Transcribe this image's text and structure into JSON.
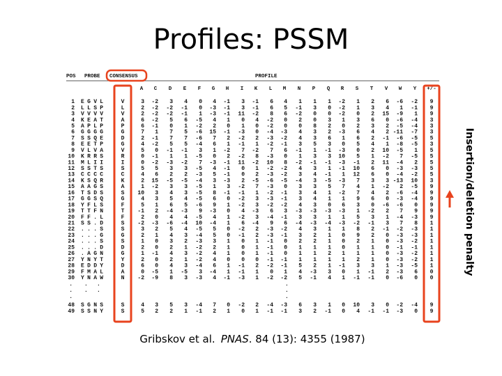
{
  "title": "Profiles: PSSM",
  "side_label": "Insertion/deletion penalty",
  "citation": {
    "authors": "Gribskov et al.",
    "journal": "PNAS",
    "rest": ". 84 (13): 4355 (1987)"
  },
  "table": {
    "pos_header": "POS",
    "probe_header": "PROBE",
    "consensus_header": "CONSENSUS",
    "profile_header": "PROFILE",
    "gap_header": "+/-",
    "columns": [
      "A",
      "C",
      "D",
      "E",
      "F",
      "G",
      "H",
      "I",
      "K",
      "L",
      "M",
      "N",
      "P",
      "Q",
      "R",
      "S",
      "T",
      "V",
      "W",
      "Y"
    ],
    "rows": [
      {
        "pos": "1",
        "probe": "EGVL",
        "consensus": "V",
        "values": [
          3,
          -2,
          3,
          4,
          0,
          4,
          -1,
          3,
          -1,
          6,
          4,
          1,
          1,
          1,
          -2,
          1,
          2,
          6,
          -6,
          -2
        ],
        "gap": 9
      },
      {
        "pos": "2",
        "probe": "LLSP",
        "consensus": "L",
        "values": [
          2,
          -2,
          -2,
          -1,
          0,
          -3,
          -1,
          3,
          -1,
          6,
          5,
          -1,
          3,
          0,
          -2,
          1,
          3,
          4,
          1,
          -1
        ],
        "gap": 9
      },
      {
        "pos": "3",
        "probe": "VVVV",
        "consensus": "V",
        "values": [
          2,
          -2,
          -2,
          -1,
          1,
          -3,
          -1,
          11,
          -2,
          8,
          6,
          -2,
          0,
          0,
          -2,
          0,
          2,
          15,
          -9,
          1
        ],
        "gap": 9
      },
      {
        "pos": "4",
        "probe": "KEAT",
        "consensus": "A",
        "values": [
          6,
          -2,
          5,
          6,
          -5,
          4,
          1,
          0,
          4,
          -2,
          0,
          2,
          0,
          3,
          1,
          3,
          6,
          0,
          -6,
          -4
        ],
        "gap": 3
      },
      {
        "pos": "5",
        "probe": "APLP",
        "consensus": "P",
        "values": [
          6,
          -1,
          0,
          1,
          -2,
          2,
          0,
          1,
          0,
          -2,
          0,
          0,
          8,
          2,
          0,
          2,
          3,
          2,
          -5,
          -4
        ],
        "gap": 3
      },
      {
        "pos": "6",
        "probe": "GGGG",
        "consensus": "G",
        "values": [
          7,
          1,
          7,
          5,
          -6,
          15,
          -1,
          -3,
          0,
          -4,
          -3,
          4,
          3,
          2,
          -3,
          6,
          4,
          2,
          -11,
          -7
        ],
        "gap": 3
      },
      {
        "pos": "7",
        "probe": "SSQE",
        "consensus": "D",
        "values": [
          2,
          -1,
          7,
          7,
          -6,
          7,
          2,
          -2,
          2,
          -3,
          -2,
          4,
          3,
          6,
          1,
          6,
          2,
          -1,
          -6,
          -5
        ],
        "gap": 5
      },
      {
        "pos": "8",
        "probe": "EETP",
        "consensus": "G",
        "values": [
          4,
          -2,
          5,
          5,
          -4,
          6,
          1,
          -1,
          1,
          -2,
          -1,
          3,
          5,
          3,
          0,
          5,
          4,
          1,
          -8,
          -5
        ],
        "gap": 3
      },
      {
        "pos": "9",
        "probe": "VLVA",
        "consensus": "V",
        "values": [
          5,
          0,
          -1,
          -1,
          3,
          1,
          -2,
          7,
          -2,
          7,
          6,
          -1,
          1,
          -1,
          -3,
          0,
          2,
          10,
          -5,
          1
        ],
        "gap": 5
      },
      {
        "pos": "10",
        "probe": "KRRS",
        "consensus": "R",
        "values": [
          0,
          -1,
          1,
          1,
          -5,
          0,
          2,
          -2,
          8,
          -3,
          0,
          1,
          3,
          3,
          10,
          5,
          1,
          -2,
          7,
          -5
        ],
        "gap": 5
      },
      {
        "pos": "11",
        "probe": "MLII",
        "consensus": "I",
        "values": [
          0,
          -2,
          -3,
          -2,
          7,
          -3,
          -1,
          11,
          -2,
          10,
          8,
          -2,
          -1,
          -1,
          -3,
          -1,
          2,
          11,
          -4,
          2
        ],
        "gap": 5
      },
      {
        "pos": "12",
        "probe": "SSTS",
        "consensus": "S",
        "values": [
          5,
          5,
          3,
          3,
          -5,
          4,
          -1,
          0,
          1,
          -2,
          -2,
          4,
          3,
          1,
          -1,
          10,
          6,
          0,
          -3,
          -3
        ],
        "gap": 5
      },
      {
        "pos": "13",
        "probe": "CCCC",
        "consensus": "C",
        "values": [
          4,
          6,
          2,
          2,
          -3,
          5,
          -1,
          0,
          2,
          -3,
          -2,
          3,
          4,
          -1,
          1,
          12,
          6,
          0,
          -4,
          -2
        ],
        "gap": 5
      },
      {
        "pos": "14",
        "probe": "KSQR",
        "consensus": "K",
        "values": [
          2,
          15,
          -5,
          -5,
          -4,
          3,
          -3,
          2,
          -5,
          -6,
          -5,
          -4,
          3,
          -5,
          -3,
          7,
          3,
          3,
          -13,
          10
        ],
        "gap": 3
      },
      {
        "pos": "15",
        "probe": "AAGS",
        "consensus": "A",
        "values": [
          1,
          -2,
          3,
          3,
          -5,
          1,
          3,
          -2,
          7,
          -3,
          0,
          3,
          3,
          5,
          7,
          4,
          1,
          -2,
          2,
          -5
        ],
        "gap": 9
      },
      {
        "pos": "16",
        "probe": "TSDS",
        "consensus": "S",
        "values": [
          10,
          3,
          4,
          3,
          -5,
          8,
          -1,
          -1,
          1,
          -2,
          -1,
          3,
          4,
          1,
          -2,
          7,
          4,
          2,
          -6,
          -4
        ],
        "gap": 9
      },
      {
        "pos": "17",
        "probe": "GGSQ",
        "consensus": "G",
        "values": [
          4,
          3,
          5,
          4,
          -5,
          6,
          0,
          -2,
          3,
          -3,
          -1,
          3,
          4,
          1,
          1,
          9,
          6,
          0,
          -3,
          -4
        ],
        "gap": 9
      },
      {
        "pos": "18",
        "probe": "YFLS",
        "consensus": "F",
        "values": [
          5,
          1,
          6,
          5,
          -6,
          9,
          1,
          -2,
          3,
          -2,
          -2,
          4,
          3,
          0,
          6,
          3,
          0,
          -6,
          -6,
          0
        ],
        "gap": 9
      },
      {
        "pos": "19",
        "probe": "TTFN",
        "consensus": "T",
        "values": [
          -1,
          2,
          -4,
          -3,
          9,
          -3,
          0,
          4,
          -3,
          6,
          3,
          -3,
          -3,
          -3,
          -3,
          1,
          -2,
          2,
          7,
          9
        ],
        "gap": 9
      },
      {
        "pos": "20",
        "probe": "FF.L",
        "consensus": "F",
        "values": [
          2,
          0,
          4,
          4,
          -5,
          4,
          1,
          -2,
          3,
          -4,
          -1,
          3,
          3,
          1,
          1,
          5,
          3,
          1,
          -4,
          -3
        ],
        "gap": 9
      },
      {
        "pos": "21",
        "probe": "SS.D",
        "consensus": "S",
        "values": [
          -2,
          -3,
          -6,
          -4,
          10,
          -4,
          1,
          6,
          -4,
          9,
          6,
          -4,
          -3,
          -4,
          -3,
          -2,
          -1,
          3,
          7,
          8
        ],
        "gap": 1
      },
      {
        "pos": "22",
        "probe": "...S",
        "consensus": "S",
        "values": [
          3,
          2,
          5,
          4,
          -5,
          5,
          0,
          -2,
          2,
          -3,
          -2,
          4,
          3,
          1,
          1,
          8,
          2,
          -1,
          -2,
          -3
        ],
        "gap": 1
      },
      {
        "pos": "23",
        "probe": "...G",
        "consensus": "G",
        "values": [
          2,
          1,
          4,
          3,
          -4,
          5,
          0,
          -1,
          2,
          -3,
          -1,
          3,
          2,
          1,
          0,
          9,
          2,
          0,
          -3,
          -3
        ],
        "gap": 1
      },
      {
        "pos": "24",
        "probe": "...S",
        "consensus": "S",
        "values": [
          1,
          0,
          3,
          2,
          -3,
          3,
          1,
          0,
          1,
          -1,
          0,
          2,
          2,
          1,
          0,
          2,
          1,
          0,
          -3,
          -2
        ],
        "gap": 1
      },
      {
        "pos": "25",
        "probe": "...D",
        "consensus": "D",
        "values": [
          2,
          0,
          2,
          1,
          -2,
          2,
          1,
          0,
          1,
          -1,
          0,
          1,
          1,
          1,
          0,
          1,
          1,
          0,
          -1,
          -1
        ],
        "gap": 1
      },
      {
        "pos": "26",
        "probe": ".AGN",
        "consensus": "G",
        "values": [
          1,
          -1,
          4,
          3,
          -2,
          4,
          1,
          0,
          1,
          -1,
          0,
          1,
          1,
          2,
          1,
          1,
          1,
          0,
          -3,
          -2
        ],
        "gap": 1
      },
      {
        "pos": "27",
        "probe": "YNYT",
        "consensus": "Y",
        "values": [
          2,
          0,
          2,
          1,
          -2,
          4,
          0,
          0,
          0,
          -1,
          -1,
          1,
          1,
          1,
          1,
          2,
          1,
          0,
          -3,
          -2
        ],
        "gap": 1
      },
      {
        "pos": "28",
        "probe": "EDDY",
        "consensus": "D",
        "values": [
          6,
          0,
          4,
          3,
          -4,
          6,
          1,
          -1,
          2,
          -2,
          -1,
          5,
          2,
          1,
          -1,
          3,
          3,
          1,
          -3,
          -5
        ],
        "gap": 1
      },
      {
        "pos": "29",
        "probe": "FMAL",
        "consensus": "A",
        "values": [
          0,
          -5,
          1,
          -5,
          3,
          -4,
          1,
          -1,
          1,
          0,
          1,
          4,
          -3,
          3,
          0,
          1,
          -1,
          2,
          -3,
          6
        ],
        "gap": 0
      },
      {
        "pos": "30",
        "probe": "YNAW",
        "consensus": "N",
        "values": [
          -2,
          -9,
          8,
          3,
          -3,
          4,
          -1,
          -3,
          1,
          -2,
          -2,
          5,
          -1,
          4,
          1,
          -1,
          -1,
          0,
          -6,
          0
        ],
        "gap": 0
      },
      {
        "pos": "48",
        "probe": "SGNS",
        "consensus": "S",
        "values": [
          4,
          3,
          5,
          3,
          -4,
          7,
          0,
          -2,
          2,
          -4,
          -3,
          6,
          3,
          1,
          0,
          10,
          3,
          0,
          -2,
          -4
        ],
        "gap": 9
      },
      {
        "pos": "49",
        "probe": "SSNY",
        "consensus": "S",
        "values": [
          5,
          2,
          2,
          1,
          -1,
          2,
          1,
          0,
          1,
          -1,
          -1,
          3,
          2,
          -1,
          0,
          4,
          -1,
          -1,
          -3,
          0
        ],
        "gap": 9
      }
    ]
  }
}
